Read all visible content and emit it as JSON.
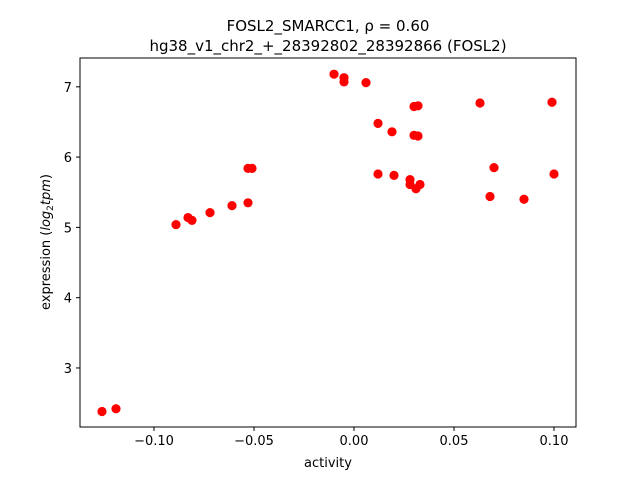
{
  "chart_data": {
    "type": "scatter",
    "title_line1": "FOSL2_SMARCC1, ρ = 0.60",
    "title_line2": "hg38_v1_chr2_+_28392802_28392866 (FOSL2)",
    "xlabel": "activity",
    "ylabel_prefix": "expression (",
    "ylabel_math": "log",
    "ylabel_sub": "2",
    "ylabel_math2": "tpm",
    "ylabel_suffix": ")",
    "xlim": [
      -0.137,
      0.111
    ],
    "ylim": [
      2.16,
      7.41
    ],
    "xticks": [
      {
        "value": -0.1,
        "label": "−0.10"
      },
      {
        "value": -0.05,
        "label": "−0.05"
      },
      {
        "value": 0.0,
        "label": "0.00"
      },
      {
        "value": 0.05,
        "label": "0.05"
      },
      {
        "value": 0.1,
        "label": "0.10"
      }
    ],
    "yticks": [
      {
        "value": 3,
        "label": "3"
      },
      {
        "value": 4,
        "label": "4"
      },
      {
        "value": 5,
        "label": "5"
      },
      {
        "value": 6,
        "label": "6"
      },
      {
        "value": 7,
        "label": "7"
      }
    ],
    "grid": false,
    "color": "#ff0000",
    "series": [
      {
        "points": [
          [
            -0.126,
            2.38
          ],
          [
            -0.119,
            2.42
          ],
          [
            -0.089,
            5.04
          ],
          [
            -0.083,
            5.14
          ],
          [
            -0.081,
            5.1
          ],
          [
            -0.072,
            5.21
          ],
          [
            -0.061,
            5.31
          ],
          [
            -0.053,
            5.35
          ],
          [
            -0.053,
            5.84
          ],
          [
            -0.051,
            5.84
          ],
          [
            -0.01,
            7.18
          ],
          [
            -0.005,
            7.13
          ],
          [
            -0.005,
            7.07
          ],
          [
            0.006,
            7.06
          ],
          [
            0.012,
            6.48
          ],
          [
            0.012,
            5.76
          ],
          [
            0.019,
            6.36
          ],
          [
            0.02,
            5.74
          ],
          [
            0.028,
            5.68
          ],
          [
            0.028,
            5.61
          ],
          [
            0.03,
            6.72
          ],
          [
            0.03,
            6.31
          ],
          [
            0.031,
            5.55
          ],
          [
            0.032,
            6.73
          ],
          [
            0.032,
            6.3
          ],
          [
            0.033,
            5.61
          ],
          [
            0.063,
            6.77
          ],
          [
            0.068,
            5.44
          ],
          [
            0.07,
            5.85
          ],
          [
            0.085,
            5.4
          ],
          [
            0.099,
            6.78
          ],
          [
            0.1,
            5.76
          ]
        ]
      }
    ]
  }
}
